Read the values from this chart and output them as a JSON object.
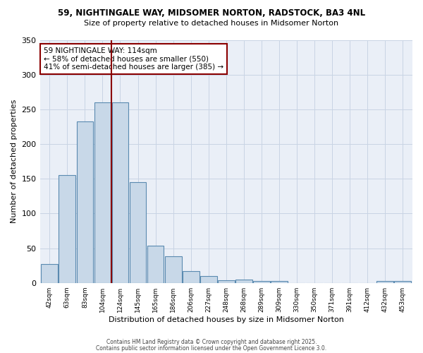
{
  "title1": "59, NIGHTINGALE WAY, MIDSOMER NORTON, RADSTOCK, BA3 4NL",
  "title2": "Size of property relative to detached houses in Midsomer Norton",
  "xlabel": "Distribution of detached houses by size in Midsomer Norton",
  "ylabel": "Number of detached properties",
  "bar_labels": [
    "42sqm",
    "63sqm",
    "83sqm",
    "104sqm",
    "124sqm",
    "145sqm",
    "165sqm",
    "186sqm",
    "206sqm",
    "227sqm",
    "248sqm",
    "268sqm",
    "289sqm",
    "309sqm",
    "330sqm",
    "350sqm",
    "371sqm",
    "391sqm",
    "412sqm",
    "432sqm",
    "453sqm"
  ],
  "bar_values": [
    27,
    155,
    233,
    260,
    260,
    145,
    54,
    38,
    17,
    10,
    4,
    5,
    3,
    3,
    0,
    0,
    0,
    0,
    0,
    3,
    3
  ],
  "bar_color": "#c8d8e8",
  "bar_edge_color": "#5a8ab0",
  "vline_pos": 3.5,
  "vline_color": "#8b0000",
  "ylim": [
    0,
    350
  ],
  "yticks": [
    0,
    50,
    100,
    150,
    200,
    250,
    300,
    350
  ],
  "annotation_line1": "59 NIGHTINGALE WAY: 114sqm",
  "annotation_line2": "← 58% of detached houses are smaller (550)",
  "annotation_line3": "41% of semi-detached houses are larger (385) →",
  "annotation_box_edge_color": "#8b0000",
  "grid_color": "#c8d4e4",
  "bg_color": "#eaeff7",
  "footer1": "Contains HM Land Registry data © Crown copyright and database right 2025.",
  "footer2": "Contains public sector information licensed under the Open Government Licence 3.0."
}
